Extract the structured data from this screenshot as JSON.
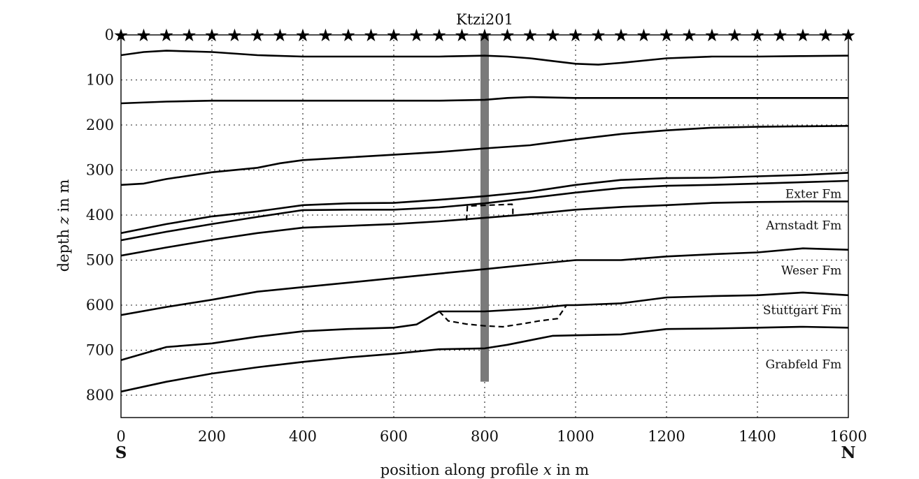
{
  "title_partial": "",
  "chart_data": {
    "type": "line",
    "title": "",
    "xlabel": "position along profile x in m",
    "ylabel": "depth z in m",
    "xlim": [
      0,
      1600
    ],
    "ylim": [
      0,
      850
    ],
    "y_inverted": true,
    "grid": true,
    "xticks": [
      0,
      200,
      400,
      600,
      800,
      1000,
      1200,
      1400,
      1600
    ],
    "xtick_labels": [
      "0",
      "200",
      "400",
      "600",
      "800",
      "1000",
      "1200",
      "1400",
      "1600"
    ],
    "yticks": [
      0,
      100,
      200,
      300,
      400,
      500,
      600,
      700,
      800
    ],
    "ytick_labels": [
      "0",
      "100",
      "200",
      "300",
      "400",
      "500",
      "600",
      "700",
      "800"
    ],
    "direction_labels": {
      "left": "S",
      "right": "N"
    },
    "well": {
      "name": "Ktzi201",
      "x": 800,
      "depth_top": 0,
      "depth_bottom": 770,
      "color": "#7a7a7a"
    },
    "receivers": {
      "marker": "★",
      "x_start": 0,
      "x_end": 1600,
      "count": 33,
      "depth": 0
    },
    "horizons": [
      {
        "x": [
          0,
          50,
          100,
          200,
          300,
          400,
          500,
          600,
          700,
          800,
          850,
          900,
          950,
          1000,
          1050,
          1100,
          1200,
          1300,
          1400,
          1500,
          1600
        ],
        "y": [
          45,
          38,
          35,
          38,
          45,
          48,
          48,
          48,
          48,
          46,
          48,
          52,
          58,
          64,
          66,
          62,
          52,
          48,
          48,
          47,
          46
        ]
      },
      {
        "x": [
          0,
          100,
          200,
          300,
          400,
          500,
          600,
          700,
          800,
          850,
          900,
          1000,
          1200,
          1400,
          1600
        ],
        "y": [
          152,
          148,
          146,
          146,
          146,
          146,
          146,
          146,
          144,
          140,
          138,
          140,
          140,
          140,
          140
        ]
      },
      {
        "x": [
          0,
          50,
          100,
          200,
          300,
          350,
          400,
          500,
          600,
          700,
          800,
          900,
          1000,
          1100,
          1200,
          1300,
          1400,
          1500,
          1600
        ],
        "y": [
          333,
          330,
          320,
          305,
          295,
          285,
          278,
          272,
          266,
          260,
          252,
          245,
          232,
          220,
          212,
          206,
          204,
          203,
          202
        ]
      },
      {
        "x": [
          0,
          100,
          200,
          300,
          400,
          500,
          600,
          700,
          800,
          900,
          1000,
          1100,
          1200,
          1300,
          1400,
          1500,
          1600
        ],
        "y": [
          440,
          420,
          403,
          392,
          378,
          374,
          373,
          366,
          358,
          348,
          333,
          322,
          318,
          317,
          314,
          311,
          306
        ]
      },
      {
        "x": [
          0,
          100,
          200,
          300,
          400,
          500,
          600,
          700,
          800,
          900,
          1000,
          1100,
          1200,
          1300,
          1400,
          1500,
          1600
        ],
        "y": [
          456,
          437,
          420,
          404,
          389,
          388,
          388,
          383,
          374,
          362,
          350,
          340,
          335,
          333,
          330,
          327,
          324
        ]
      },
      {
        "x": [
          0,
          100,
          200,
          300,
          400,
          500,
          600,
          700,
          800,
          900,
          1000,
          1100,
          1200,
          1300,
          1400,
          1500,
          1600
        ],
        "y": [
          490,
          472,
          455,
          440,
          428,
          424,
          420,
          414,
          406,
          398,
          388,
          382,
          378,
          373,
          371,
          370,
          370
        ]
      },
      {
        "x": [
          0,
          100,
          200,
          300,
          400,
          500,
          600,
          700,
          800,
          900,
          1000,
          1100,
          1200,
          1300,
          1400,
          1500,
          1600
        ],
        "y": [
          622,
          604,
          588,
          570,
          560,
          550,
          540,
          530,
          520,
          510,
          500,
          500,
          492,
          487,
          483,
          474,
          477
        ]
      },
      {
        "x": [
          0,
          100,
          200,
          300,
          400,
          500,
          600,
          650,
          700,
          800,
          900,
          980,
          1000,
          1100,
          1200,
          1300,
          1400,
          1500,
          1600
        ],
        "y": [
          722,
          693,
          685,
          670,
          658,
          653,
          650,
          643,
          614,
          614,
          608,
          600,
          600,
          596,
          583,
          580,
          578,
          572,
          578
        ]
      },
      {
        "x": [
          0,
          100,
          200,
          300,
          400,
          500,
          600,
          700,
          800,
          850,
          900,
          950,
          1000,
          1100,
          1200,
          1300,
          1400,
          1500,
          1600
        ],
        "y": [
          792,
          770,
          752,
          738,
          726,
          716,
          708,
          698,
          696,
          688,
          678,
          668,
          667,
          665,
          653,
          652,
          650,
          648,
          650
        ]
      }
    ],
    "dashed_features": [
      {
        "x": [
          760,
          762,
          860,
          862,
          862
        ],
        "y": [
          412,
          380,
          376,
          380,
          404
        ]
      },
      {
        "x": [
          700,
          720,
          760,
          800,
          840,
          880,
          920,
          960,
          980
        ],
        "y": [
          614,
          635,
          642,
          646,
          648,
          642,
          635,
          630,
          600
        ]
      }
    ],
    "annotations": [
      {
        "text": "Exter Fm",
        "x": 1585,
        "y": 362
      },
      {
        "text": "Arnstadt Fm",
        "x": 1585,
        "y": 432
      },
      {
        "text": "Weser Fm",
        "x": 1585,
        "y": 532
      },
      {
        "text": "Stuttgart Fm",
        "x": 1585,
        "y": 620
      },
      {
        "text": "Grabfeld Fm",
        "x": 1585,
        "y": 740
      }
    ]
  }
}
